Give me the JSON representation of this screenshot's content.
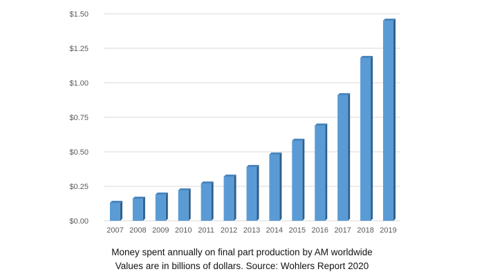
{
  "caption": {
    "line1": "Money spent annually on final part production by AM worldwide",
    "line2": "Values are in billions of dollars. Source: Wohlers Report 2020"
  },
  "colors": {
    "bar_front": "#5b9bd5",
    "bar_side": "#2e5f8a",
    "bar_top": "#4a86bd",
    "grid": "#d9d9d9",
    "axis_text": "#595959"
  },
  "chart_data": {
    "type": "bar",
    "title": "",
    "xlabel": "",
    "ylabel": "",
    "categories": [
      "2007",
      "2008",
      "2009",
      "2010",
      "2011",
      "2012",
      "2013",
      "2014",
      "2015",
      "2016",
      "2017",
      "2018",
      "2019"
    ],
    "values": [
      0.13,
      0.16,
      0.19,
      0.22,
      0.27,
      0.32,
      0.39,
      0.48,
      0.58,
      0.69,
      0.91,
      1.18,
      1.45
    ],
    "ylim": [
      0,
      1.5
    ],
    "yticks": [
      0,
      0.25,
      0.5,
      0.75,
      1.0,
      1.25,
      1.5
    ],
    "ytick_labels": [
      "$0.00",
      "$0.25",
      "$0.50",
      "$0.75",
      "$1.00",
      "$1.25",
      "$1.50"
    ],
    "grid": true,
    "legend": "none"
  }
}
